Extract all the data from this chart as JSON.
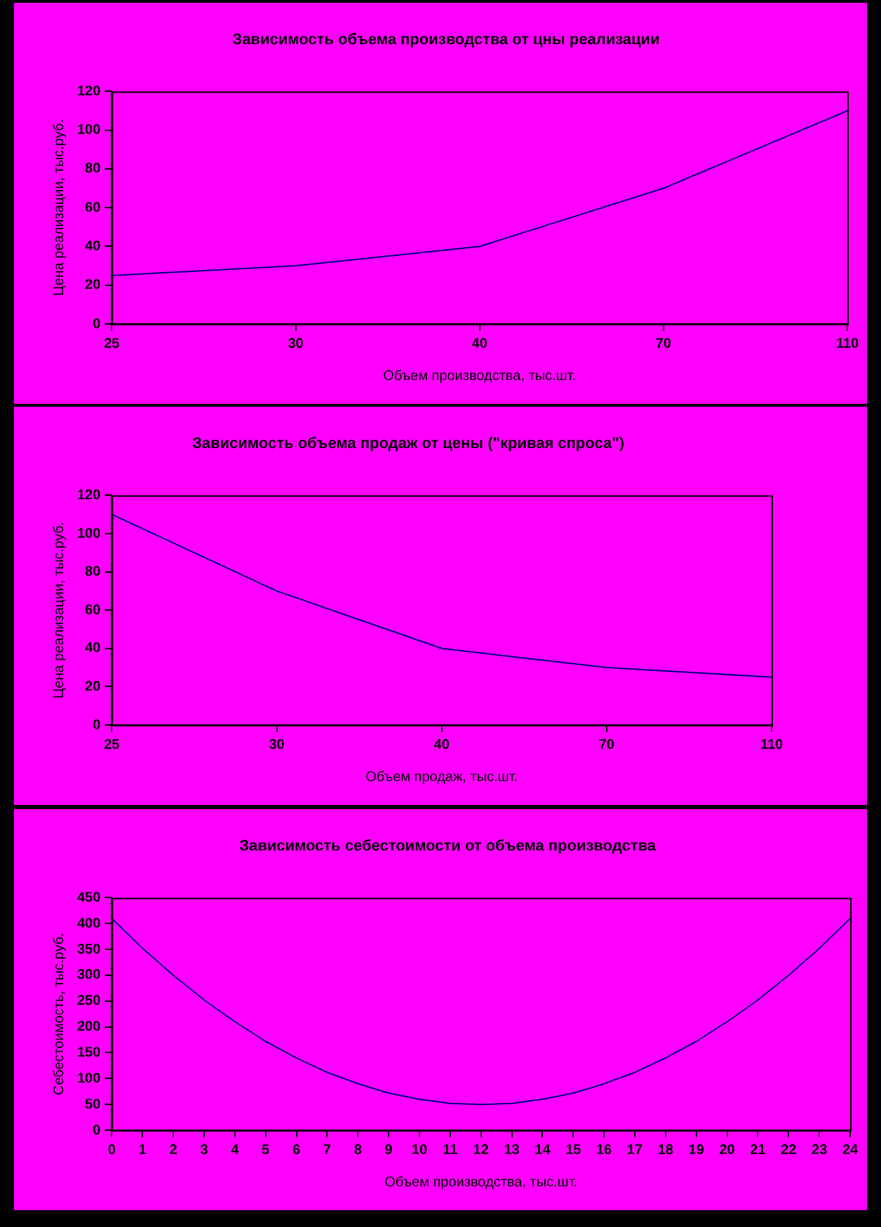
{
  "chart_data": [
    {
      "type": "line",
      "title": "Зависимость объема производства от цны реализации",
      "xlabel": "Объем производства, тыс.шт.",
      "ylabel": "Цена реализации, тыс.руб.",
      "categories": [
        "25",
        "30",
        "40",
        "70",
        "110"
      ],
      "values": [
        25,
        30,
        40,
        70,
        110
      ],
      "color": "#000080",
      "ylim": [
        0,
        120
      ],
      "yticks": [
        0,
        20,
        40,
        60,
        80,
        100,
        120
      ],
      "grid": false,
      "legend": false,
      "marker": "none"
    },
    {
      "type": "line",
      "title": "Зависимость объема продаж от цены (\"кривая спроса\")",
      "xlabel": "Объем продаж, тыс.шт.",
      "ylabel": "Цена реализации, тыс.руб.",
      "categories": [
        "25",
        "30",
        "40",
        "70",
        "110"
      ],
      "values": [
        110,
        70,
        40,
        30,
        25
      ],
      "color": "#000080",
      "ylim": [
        0,
        120
      ],
      "yticks": [
        0,
        20,
        40,
        60,
        80,
        100,
        120
      ],
      "grid": false,
      "legend": false,
      "marker": "none"
    },
    {
      "type": "line",
      "title": "Зависимость себестоимости от объема производства",
      "xlabel": "Объем производства, тыс.шт.",
      "ylabel": "Себестоимость, тыс.руб.",
      "x": [
        0,
        1,
        2,
        3,
        4,
        5,
        6,
        7,
        8,
        9,
        10,
        11,
        12,
        13,
        14,
        15,
        16,
        17,
        18,
        19,
        20,
        21,
        22,
        23,
        24
      ],
      "values": [
        410,
        352,
        300,
        252,
        210,
        172,
        140,
        112,
        90,
        72,
        60,
        52,
        50,
        52,
        60,
        72,
        90,
        112,
        140,
        172,
        210,
        252,
        300,
        352,
        410
      ],
      "color": "#000080",
      "xlim": [
        0,
        24
      ],
      "xticks": [
        0,
        1,
        2,
        3,
        4,
        5,
        6,
        7,
        8,
        9,
        10,
        11,
        12,
        13,
        14,
        15,
        16,
        17,
        18,
        19,
        20,
        21,
        22,
        23,
        24
      ],
      "ylim": [
        0,
        450
      ],
      "yticks": [
        0,
        50,
        100,
        150,
        200,
        250,
        300,
        350,
        400,
        450
      ],
      "grid": false,
      "legend": false,
      "marker": "none"
    }
  ]
}
